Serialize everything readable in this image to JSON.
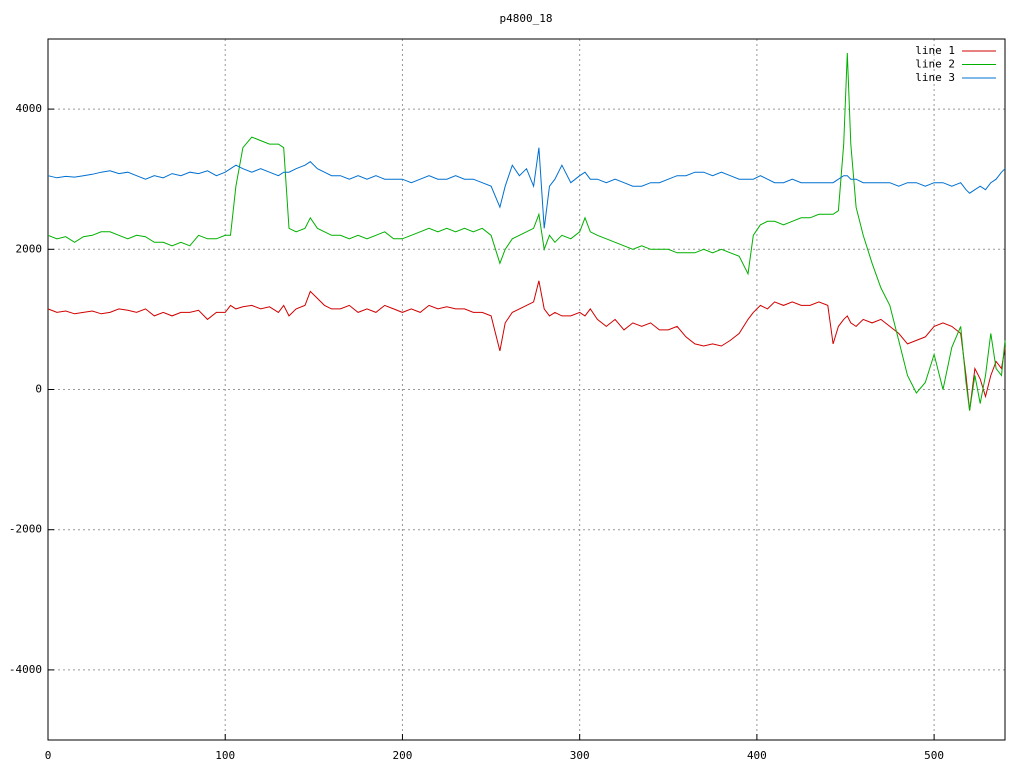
{
  "chart_data": {
    "type": "line",
    "title": "p4800_18",
    "x": [
      0,
      5,
      10,
      15,
      20,
      25,
      30,
      35,
      40,
      45,
      50,
      55,
      60,
      65,
      70,
      75,
      80,
      85,
      90,
      95,
      100,
      103,
      106,
      110,
      115,
      120,
      125,
      130,
      133,
      136,
      140,
      145,
      148,
      152,
      156,
      160,
      165,
      170,
      175,
      180,
      185,
      190,
      195,
      200,
      205,
      210,
      215,
      220,
      225,
      230,
      235,
      240,
      245,
      250,
      255,
      258,
      262,
      266,
      270,
      274,
      277,
      280,
      283,
      286,
      290,
      295,
      300,
      303,
      306,
      310,
      315,
      320,
      325,
      330,
      335,
      340,
      345,
      350,
      355,
      360,
      365,
      370,
      375,
      380,
      385,
      390,
      395,
      398,
      402,
      406,
      410,
      415,
      420,
      425,
      430,
      435,
      440,
      443,
      446,
      449,
      451,
      453,
      456,
      460,
      465,
      470,
      475,
      480,
      485,
      490,
      495,
      500,
      505,
      510,
      515,
      518,
      520,
      523,
      526,
      529,
      532,
      535,
      538,
      540
    ],
    "series": [
      {
        "name": "line 1",
        "color": "#d00000",
        "values": [
          1150,
          1100,
          1120,
          1080,
          1100,
          1120,
          1080,
          1100,
          1150,
          1130,
          1100,
          1150,
          1050,
          1100,
          1050,
          1100,
          1100,
          1130,
          1000,
          1100,
          1100,
          1200,
          1150,
          1180,
          1200,
          1150,
          1180,
          1100,
          1200,
          1050,
          1150,
          1200,
          1400,
          1300,
          1200,
          1150,
          1150,
          1200,
          1100,
          1150,
          1100,
          1200,
          1150,
          1100,
          1150,
          1100,
          1200,
          1150,
          1180,
          1150,
          1150,
          1100,
          1100,
          1050,
          550,
          950,
          1100,
          1150,
          1200,
          1250,
          1550,
          1150,
          1050,
          1100,
          1050,
          1050,
          1100,
          1050,
          1150,
          1000,
          900,
          1000,
          850,
          950,
          900,
          950,
          850,
          850,
          900,
          750,
          650,
          620,
          650,
          620,
          700,
          800,
          1000,
          1100,
          1200,
          1150,
          1250,
          1200,
          1250,
          1200,
          1200,
          1250,
          1200,
          650,
          900,
          1000,
          1050,
          950,
          900,
          1000,
          950,
          1000,
          900,
          800,
          650,
          700,
          750,
          900,
          950,
          900,
          800,
          200,
          -300,
          300,
          150,
          -100,
          200,
          400,
          300,
          600
        ]
      },
      {
        "name": "line 2",
        "color": "#00b000",
        "values": [
          2200,
          2150,
          2180,
          2100,
          2180,
          2200,
          2250,
          2250,
          2200,
          2150,
          2200,
          2180,
          2100,
          2100,
          2050,
          2100,
          2050,
          2200,
          2150,
          2150,
          2200,
          2200,
          2900,
          3450,
          3600,
          3550,
          3500,
          3500,
          3450,
          2300,
          2250,
          2300,
          2450,
          2300,
          2250,
          2200,
          2200,
          2150,
          2200,
          2150,
          2200,
          2250,
          2150,
          2150,
          2200,
          2250,
          2300,
          2250,
          2300,
          2250,
          2300,
          2250,
          2300,
          2200,
          1800,
          2000,
          2150,
          2200,
          2250,
          2300,
          2500,
          2000,
          2200,
          2100,
          2200,
          2150,
          2250,
          2450,
          2250,
          2200,
          2150,
          2100,
          2050,
          2000,
          2050,
          2000,
          2000,
          2000,
          1950,
          1950,
          1950,
          2000,
          1950,
          2000,
          1950,
          1900,
          1650,
          2200,
          2350,
          2400,
          2400,
          2350,
          2400,
          2450,
          2450,
          2500,
          2500,
          2500,
          2550,
          3500,
          4800,
          3500,
          2600,
          2200,
          1800,
          1450,
          1200,
          700,
          200,
          -50,
          100,
          500,
          0,
          600,
          900,
          100,
          -300,
          200,
          -200,
          200,
          800,
          300,
          200,
          700
        ]
      },
      {
        "name": "line 3",
        "color": "#0070d0",
        "values": [
          3050,
          3020,
          3040,
          3030,
          3050,
          3070,
          3100,
          3120,
          3080,
          3100,
          3050,
          3000,
          3050,
          3020,
          3080,
          3050,
          3100,
          3080,
          3120,
          3050,
          3100,
          3150,
          3200,
          3150,
          3100,
          3150,
          3100,
          3050,
          3100,
          3100,
          3150,
          3200,
          3250,
          3150,
          3100,
          3050,
          3050,
          3000,
          3050,
          3000,
          3050,
          3000,
          3000,
          3000,
          2950,
          3000,
          3050,
          3000,
          3000,
          3050,
          3000,
          3000,
          2950,
          2900,
          2600,
          2900,
          3200,
          3050,
          3150,
          2900,
          3450,
          2300,
          2900,
          3000,
          3200,
          2950,
          3050,
          3100,
          3000,
          3000,
          2950,
          3000,
          2950,
          2900,
          2900,
          2950,
          2950,
          3000,
          3050,
          3050,
          3100,
          3100,
          3050,
          3100,
          3050,
          3000,
          3000,
          3000,
          3050,
          3000,
          2950,
          2950,
          3000,
          2950,
          2950,
          2950,
          2950,
          2950,
          3000,
          3050,
          3050,
          3000,
          3000,
          2950,
          2950,
          2950,
          2950,
          2900,
          2950,
          2950,
          2900,
          2950,
          2950,
          2900,
          2950,
          2850,
          2800,
          2850,
          2900,
          2850,
          2950,
          3000,
          3100,
          3150
        ]
      }
    ],
    "xlim": [
      0,
      540
    ],
    "ylim": [
      -5000,
      5000
    ],
    "xticks": [
      0,
      100,
      200,
      300,
      400,
      500
    ],
    "yticks": [
      -4000,
      -2000,
      0,
      2000,
      4000
    ],
    "grid": true,
    "legend": "top-right"
  }
}
